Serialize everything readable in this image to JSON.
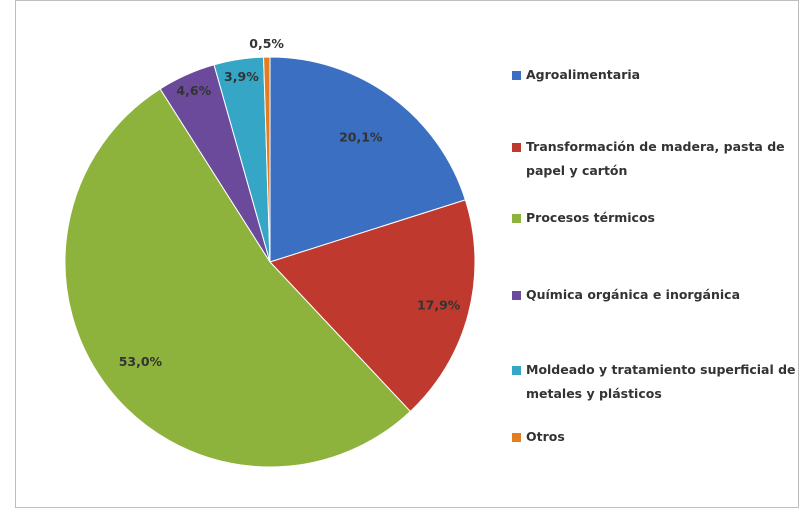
{
  "chart_data": {
    "type": "pie",
    "categories": [
      "Agroalimentaria",
      "Transformación de madera, pasta de papel y cartón",
      "Procesos térmicos",
      "Química orgánica e inorgánica",
      "Moldeado y tratamiento superficial de metales y plásticos",
      "Otros"
    ],
    "values": [
      20.1,
      17.9,
      53.0,
      4.6,
      3.9,
      0.5
    ],
    "value_labels": [
      "20,1%",
      "17,9%",
      "53,0%",
      "4,6%",
      "3,9%",
      "0,5%"
    ],
    "colors": [
      "#3b6fc2",
      "#c0392f",
      "#8db33c",
      "#6b4a9b",
      "#36a6c6",
      "#e47c22"
    ],
    "legend": "right"
  }
}
